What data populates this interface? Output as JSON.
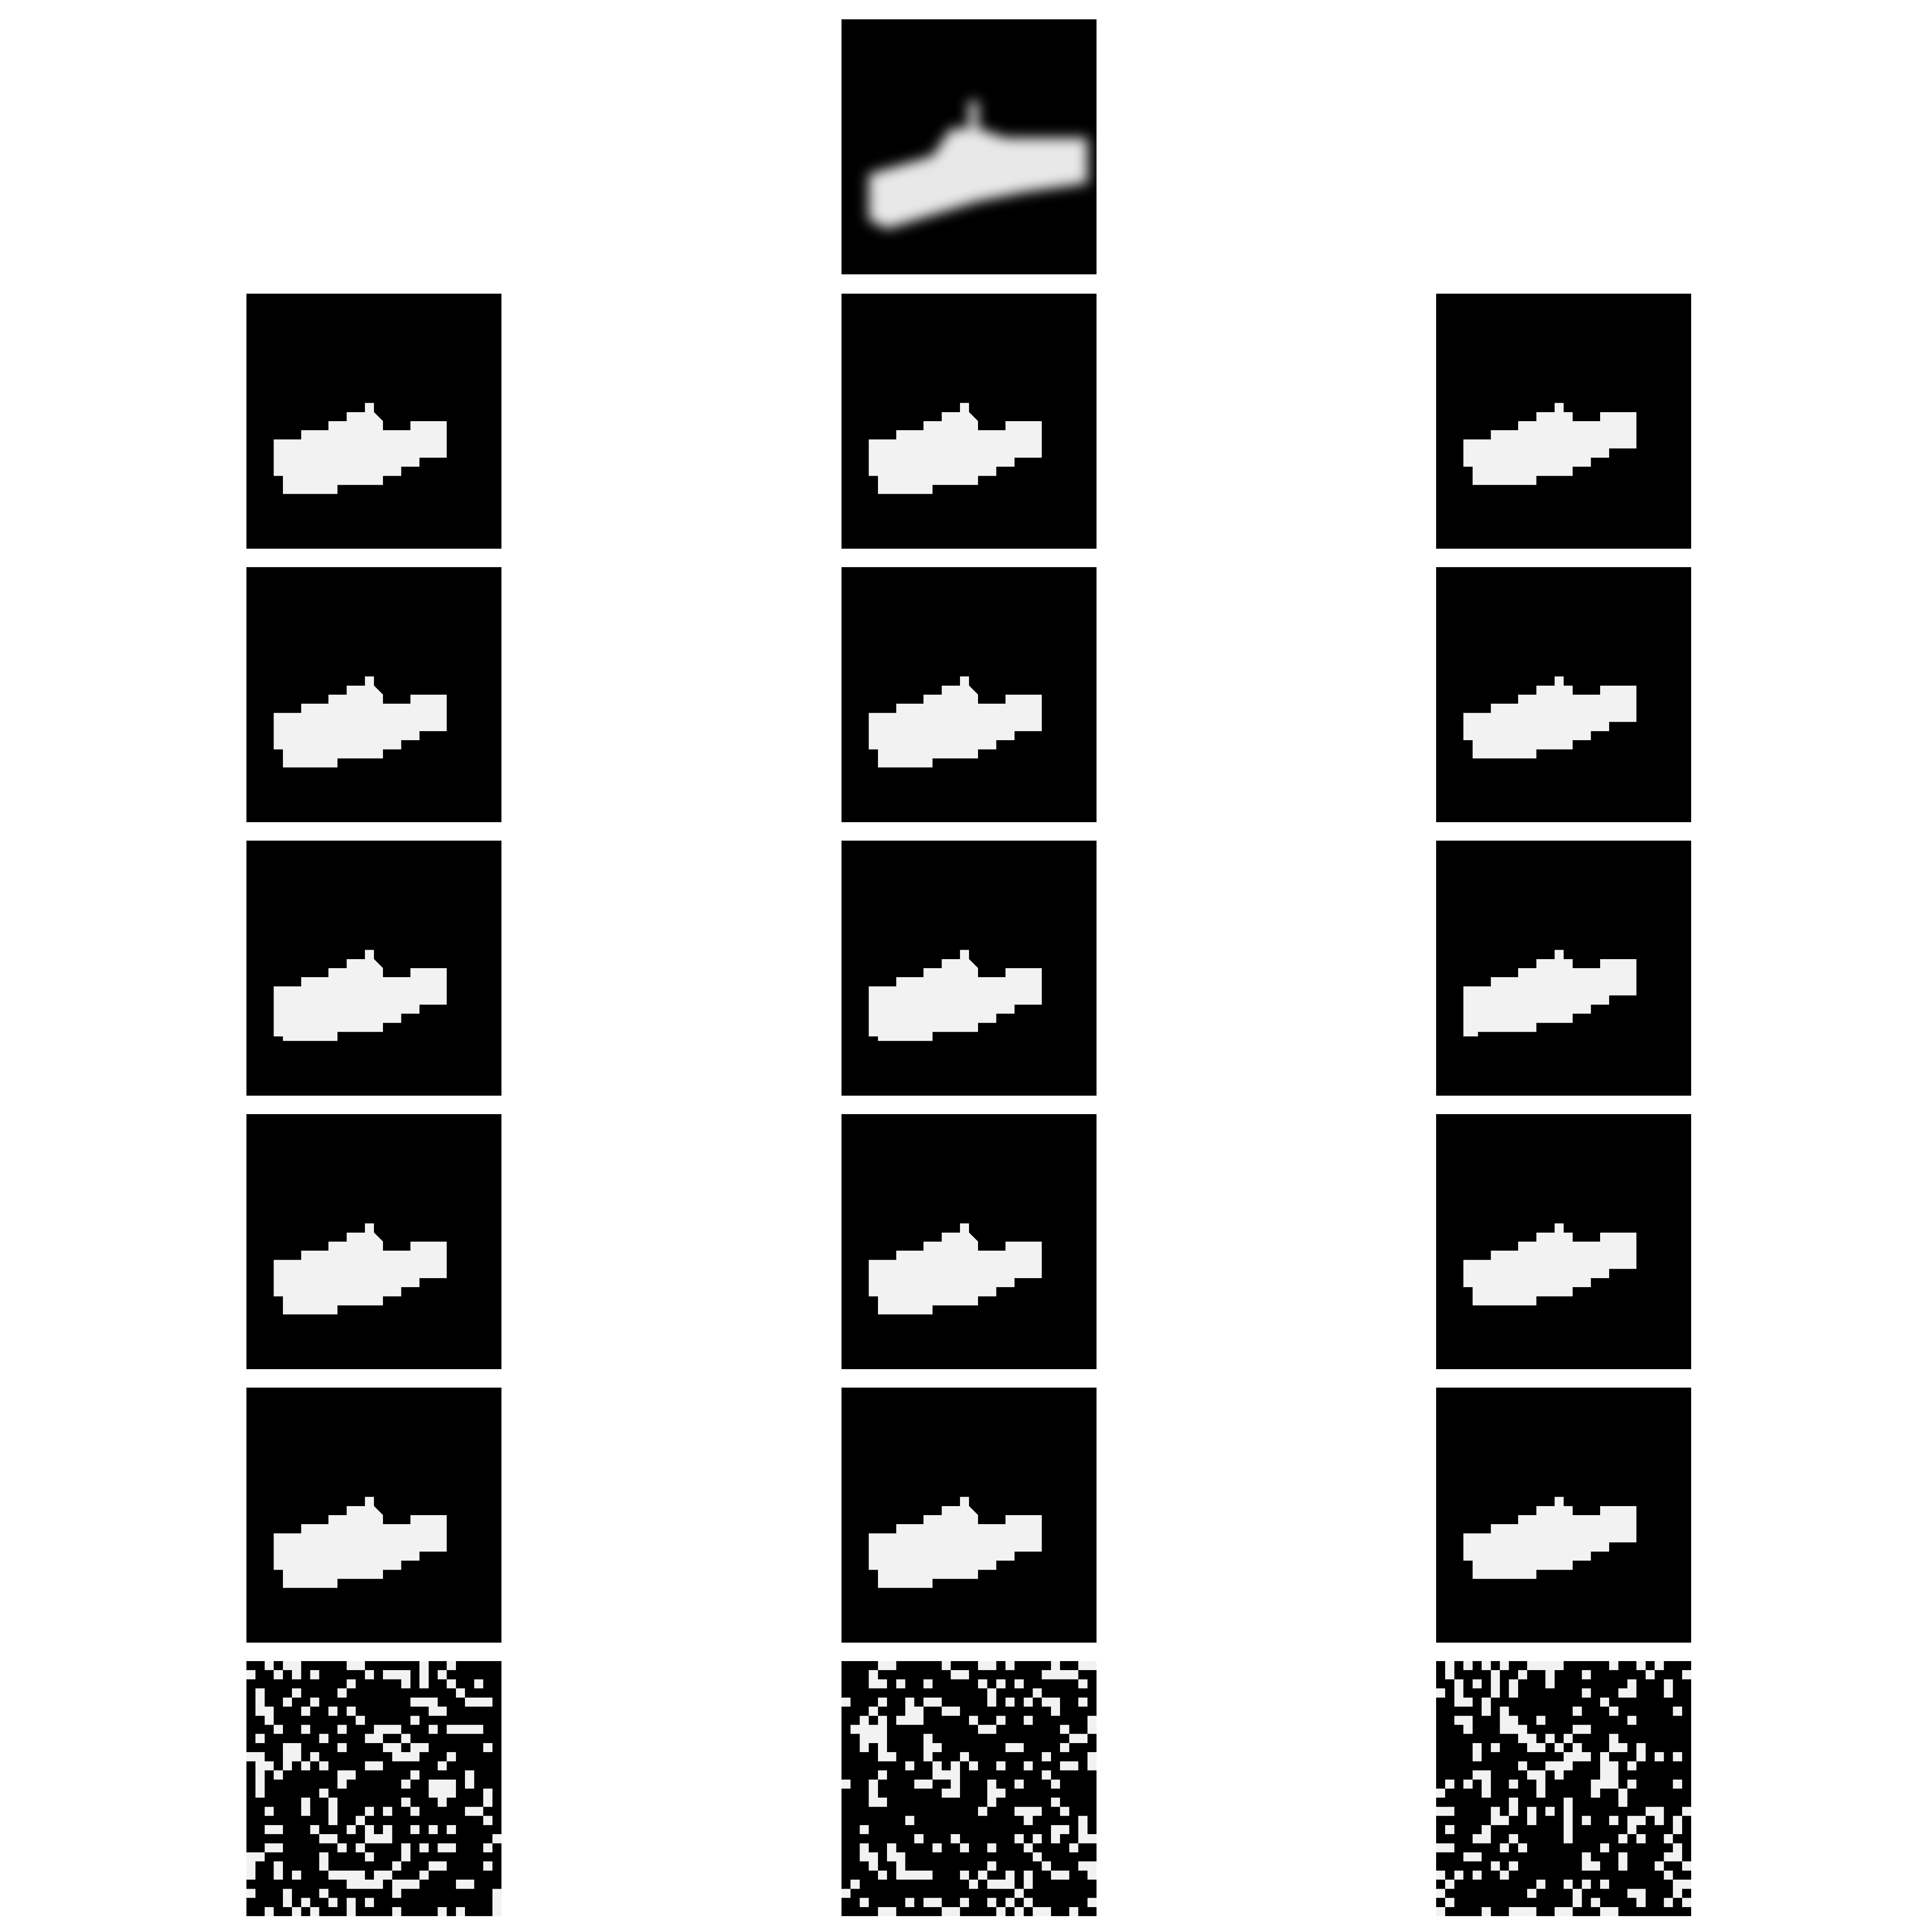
{
  "figure": {
    "background": "#ffffff",
    "panel_background": "#000000",
    "foreground": "#f2f2f2"
  },
  "top_image": {
    "kind": "blurred-reconstruction"
  },
  "grid": {
    "columns": 3,
    "rows": [
      {
        "kind": "shape"
      },
      {
        "kind": "shape"
      },
      {
        "kind": "shape-with-bar"
      },
      {
        "kind": "shape"
      },
      {
        "kind": "shape"
      },
      {
        "kind": "noise"
      }
    ]
  }
}
